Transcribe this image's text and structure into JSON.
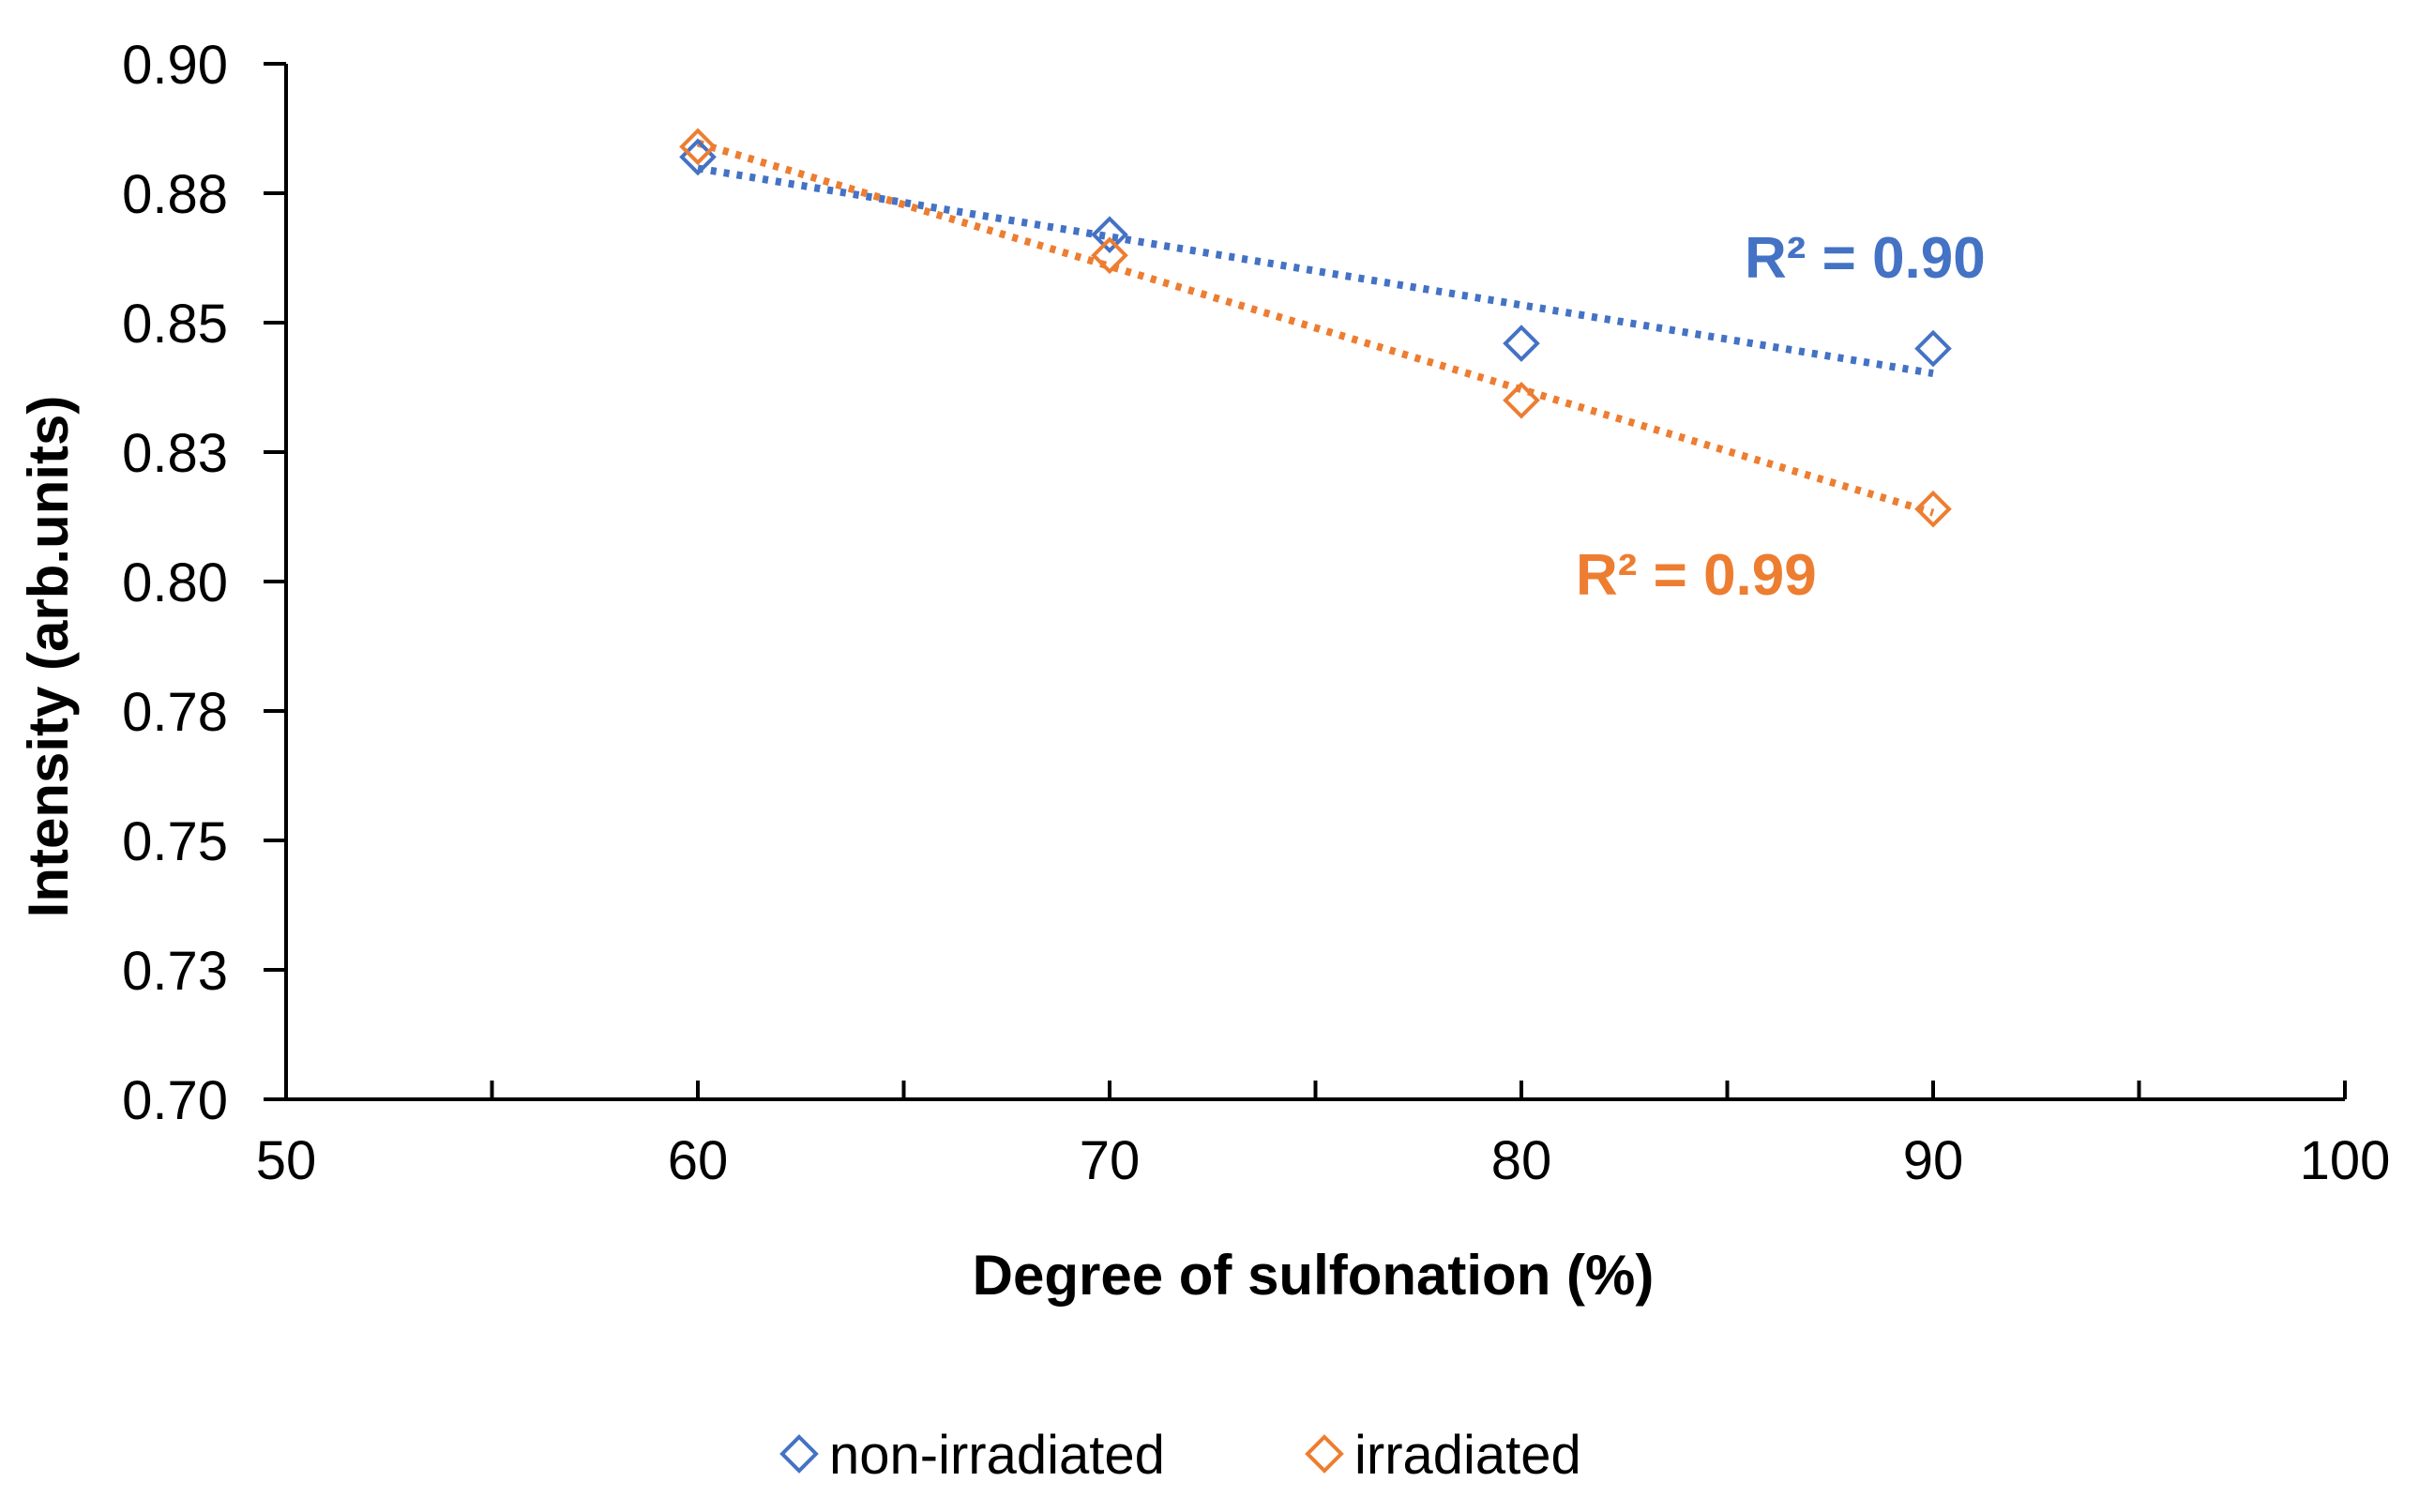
{
  "chart_data": {
    "type": "scatter",
    "xlabel": "Degree of sulfonation (%)",
    "ylabel": "Intensity (arb.units)",
    "xlim": [
      50,
      100
    ],
    "ylim": [
      0.7,
      0.9
    ],
    "x_ticks": [
      50,
      60,
      70,
      80,
      90,
      100
    ],
    "x_tick_labels": [
      "50",
      "60",
      "70",
      "80",
      "90",
      "100"
    ],
    "y_ticks": [
      0.7,
      0.725,
      0.75,
      0.775,
      0.8,
      0.825,
      0.85,
      0.875,
      0.9
    ],
    "y_tick_labels": [
      "0.70",
      "0.73",
      "0.75",
      "0.78",
      "0.80",
      "0.83",
      "0.85",
      "0.88",
      "0.90"
    ],
    "grid": false,
    "legend_position": "bottom",
    "series": [
      {
        "name": "non-irradiated",
        "color": "#4472C4",
        "marker": "diamond-open",
        "x": [
          60,
          70,
          80,
          90
        ],
        "y": [
          0.882,
          0.867,
          0.846,
          0.845
        ],
        "trendline": "linear-dotted",
        "r2_label": "R² = 0.90"
      },
      {
        "name": "irradiated",
        "color": "#ED7D31",
        "marker": "diamond-open",
        "x": [
          60,
          70,
          80,
          90
        ],
        "y": [
          0.884,
          0.863,
          0.835,
          0.814
        ],
        "trendline": "linear-dotted",
        "r2_label": "R² = 0.99"
      }
    ]
  }
}
